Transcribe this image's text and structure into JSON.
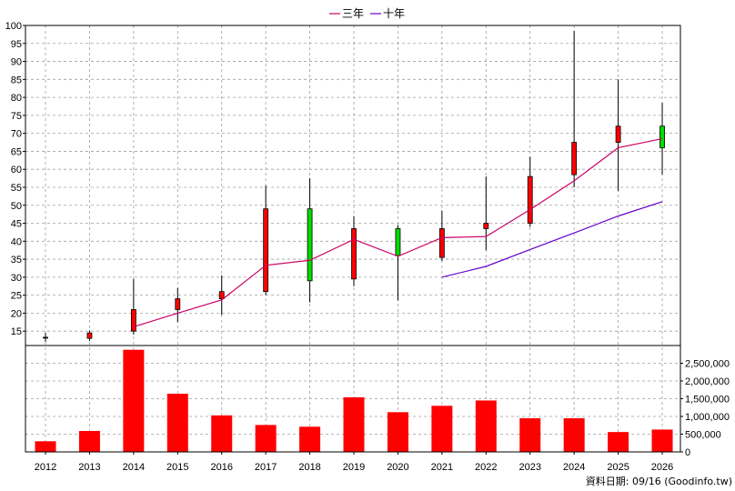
{
  "chart_data": {
    "type": "candlestick",
    "legend": [
      {
        "label": "三年",
        "color": "#cc0066"
      },
      {
        "label": "十年",
        "color": "#6600cc"
      }
    ],
    "footer": "資料日期: 09/16  (Goodinfo.tw)",
    "price_axis": {
      "min": 11,
      "max": 100,
      "ticks": [
        15,
        20,
        25,
        30,
        35,
        40,
        45,
        50,
        55,
        60,
        65,
        70,
        75,
        80,
        85,
        90,
        95,
        100
      ]
    },
    "volume_axis": {
      "min": 0,
      "max": 3000000,
      "ticks": [
        0,
        500000,
        1000000,
        1500000,
        2000000,
        2500000
      ],
      "tick_labels": [
        "0",
        "500,000",
        "1,000,000",
        "1,500,000",
        "2,000,000",
        "2,500,000"
      ]
    },
    "categories": [
      "2012",
      "2013",
      "2014",
      "2015",
      "2016",
      "2017",
      "2018",
      "2019",
      "2020",
      "2021",
      "2022",
      "2023",
      "2024",
      "2025",
      "2026"
    ],
    "candles": [
      {
        "open": 13.2,
        "close": 13.3,
        "high": 14.5,
        "low": 12.0
      },
      {
        "open": 13.0,
        "close": 14.5,
        "high": 15.2,
        "low": 12.3
      },
      {
        "open": 15.0,
        "close": 21.0,
        "high": 29.5,
        "low": 14.0
      },
      {
        "open": 21.0,
        "close": 24.0,
        "high": 27.0,
        "low": 17.5
      },
      {
        "open": 24.0,
        "close": 26.0,
        "high": 30.5,
        "low": 19.5
      },
      {
        "open": 26.0,
        "close": 49.0,
        "high": 55.5,
        "low": 25.0
      },
      {
        "open": 49.0,
        "close": 29.0,
        "high": 57.5,
        "low": 23.0
      },
      {
        "open": 29.5,
        "close": 43.5,
        "high": 47.0,
        "low": 27.5
      },
      {
        "open": 43.5,
        "close": 36.0,
        "high": 44.5,
        "low": 23.5
      },
      {
        "open": 35.5,
        "close": 43.5,
        "high": 48.5,
        "low": 34.5
      },
      {
        "open": 43.5,
        "close": 45.0,
        "high": 58.0,
        "low": 37.5
      },
      {
        "open": 45.0,
        "close": 58.0,
        "high": 63.5,
        "low": 44.0
      },
      {
        "open": 58.5,
        "close": 67.5,
        "high": 98.5,
        "low": 55.0
      },
      {
        "open": 67.5,
        "close": 72.0,
        "high": 85.0,
        "low": 54.0
      },
      {
        "open": 72.0,
        "close": 66.0,
        "high": 78.5,
        "low": 58.5
      }
    ],
    "ma_3y": [
      null,
      null,
      16.2,
      20.0,
      23.7,
      33.3,
      34.7,
      40.5,
      35.8,
      41.0,
      41.3,
      48.8,
      56.8,
      66.0,
      68.5
    ],
    "ma_10y": [
      null,
      null,
      null,
      null,
      null,
      null,
      null,
      null,
      null,
      30.0,
      33.0,
      37.7,
      42.3,
      47.0,
      51.0
    ],
    "volume": [
      300000,
      590000,
      2880000,
      1640000,
      1030000,
      760000,
      710000,
      1540000,
      1120000,
      1300000,
      1450000,
      950000,
      950000,
      560000,
      630000
    ],
    "grid": true
  }
}
